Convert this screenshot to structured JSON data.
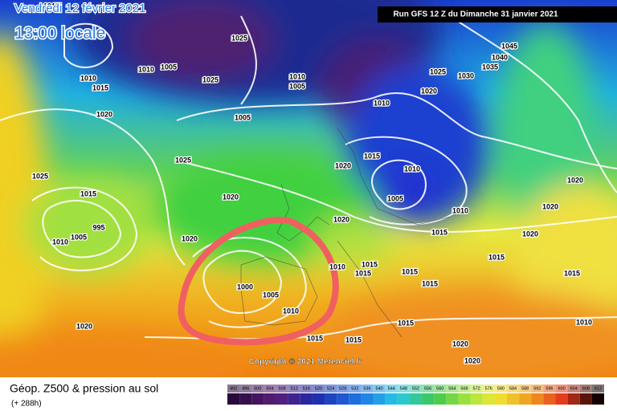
{
  "header": {
    "title": "Vendredi 12 février 2021",
    "time": "13:00 locale",
    "run": "Run GFS 12 Z du Dimanche 31 janvier 2021"
  },
  "copyright": "Copyright © 2021 Meteociel.fr",
  "footer": {
    "title": "Géop. Z500 & pression au sol",
    "lead": "(+ 288h)"
  },
  "colorbar": {
    "labels": [
      "492",
      "496",
      "500",
      "504",
      "508",
      "512",
      "516",
      "520",
      "524",
      "528",
      "532",
      "536",
      "540",
      "544",
      "548",
      "552",
      "556",
      "560",
      "564",
      "568",
      "572",
      "576",
      "580",
      "584",
      "588",
      "592",
      "596",
      "600",
      "604",
      "608",
      "612"
    ]
  },
  "isobars": {
    "labels": [
      "1015",
      "1025",
      "1010",
      "1015",
      "1010",
      "1005",
      "1025",
      "1010",
      "1005",
      "1005",
      "1010",
      "1020",
      "1025",
      "1030",
      "1035",
      "1040",
      "1045",
      "1020",
      "1025",
      "1025",
      "1015",
      "1020",
      "1020",
      "1015",
      "1010",
      "1005",
      "1010",
      "1020",
      "1020",
      "1020",
      "1015",
      "1015",
      "1015",
      "1020",
      "1010",
      "1015",
      "1015",
      "1015",
      "1015",
      "1020",
      "995",
      "1005",
      "1010",
      "1000",
      "1005",
      "1010",
      "1015",
      "1015",
      "1020",
      "1020",
      "1020",
      "1010",
      "1015"
    ]
  }
}
